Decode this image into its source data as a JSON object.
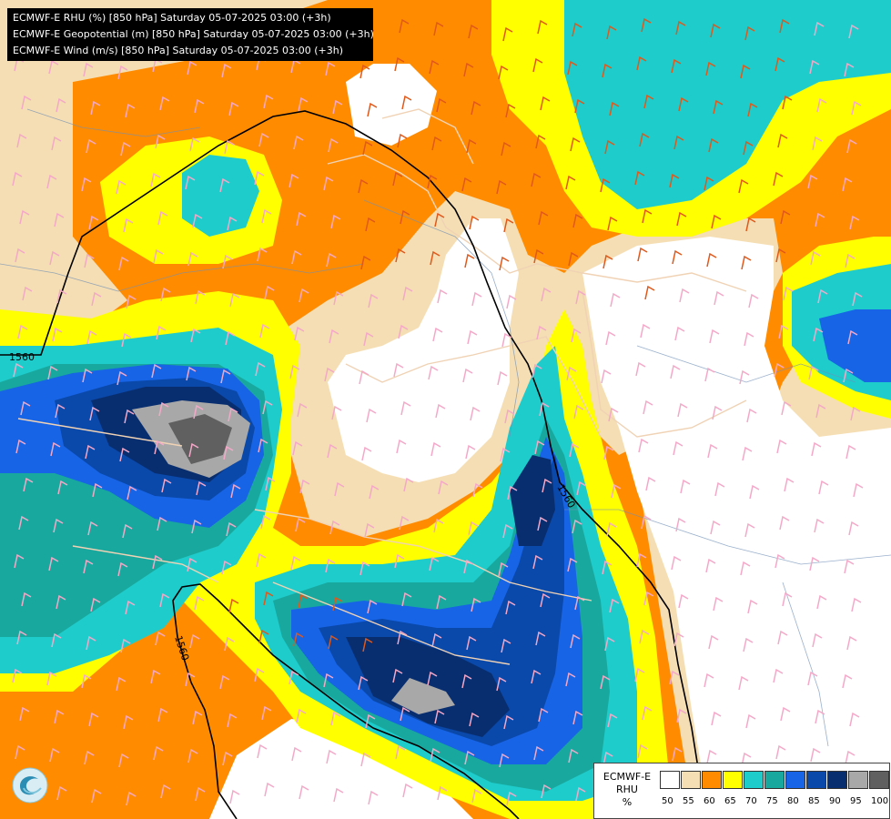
{
  "header": {
    "line1": "ECMWF-E RHU (%) [850 hPa] Saturday 05-07-2025 03:00 (+3h)",
    "line2": "ECMWF-E Geopotential (m) [850 hPa] Saturday 05-07-2025 03:00 (+3h)",
    "line3": "ECMWF-E Wind (m/s) [850 hPa] Saturday 05-07-2025 03:00 (+3h)"
  },
  "contours": {
    "label_a": "1560",
    "label_b": "1560",
    "label_c": "1560"
  },
  "legend": {
    "title_line1": "ECMWF-E",
    "title_line2": "RHU",
    "title_line3": "%",
    "ticks": [
      "50",
      "55",
      "60",
      "65",
      "70",
      "75",
      "80",
      "85",
      "90",
      "95",
      "100"
    ],
    "colors": [
      "#ffffff",
      "#f5deb3",
      "#ff8c00",
      "#ffff00",
      "#1ecccc",
      "#19a89e",
      "#1764e6",
      "#0a48aa",
      "#082e70",
      "#a8a8a8",
      "#606060"
    ]
  },
  "logo_icon": "organization-logo-icon"
}
